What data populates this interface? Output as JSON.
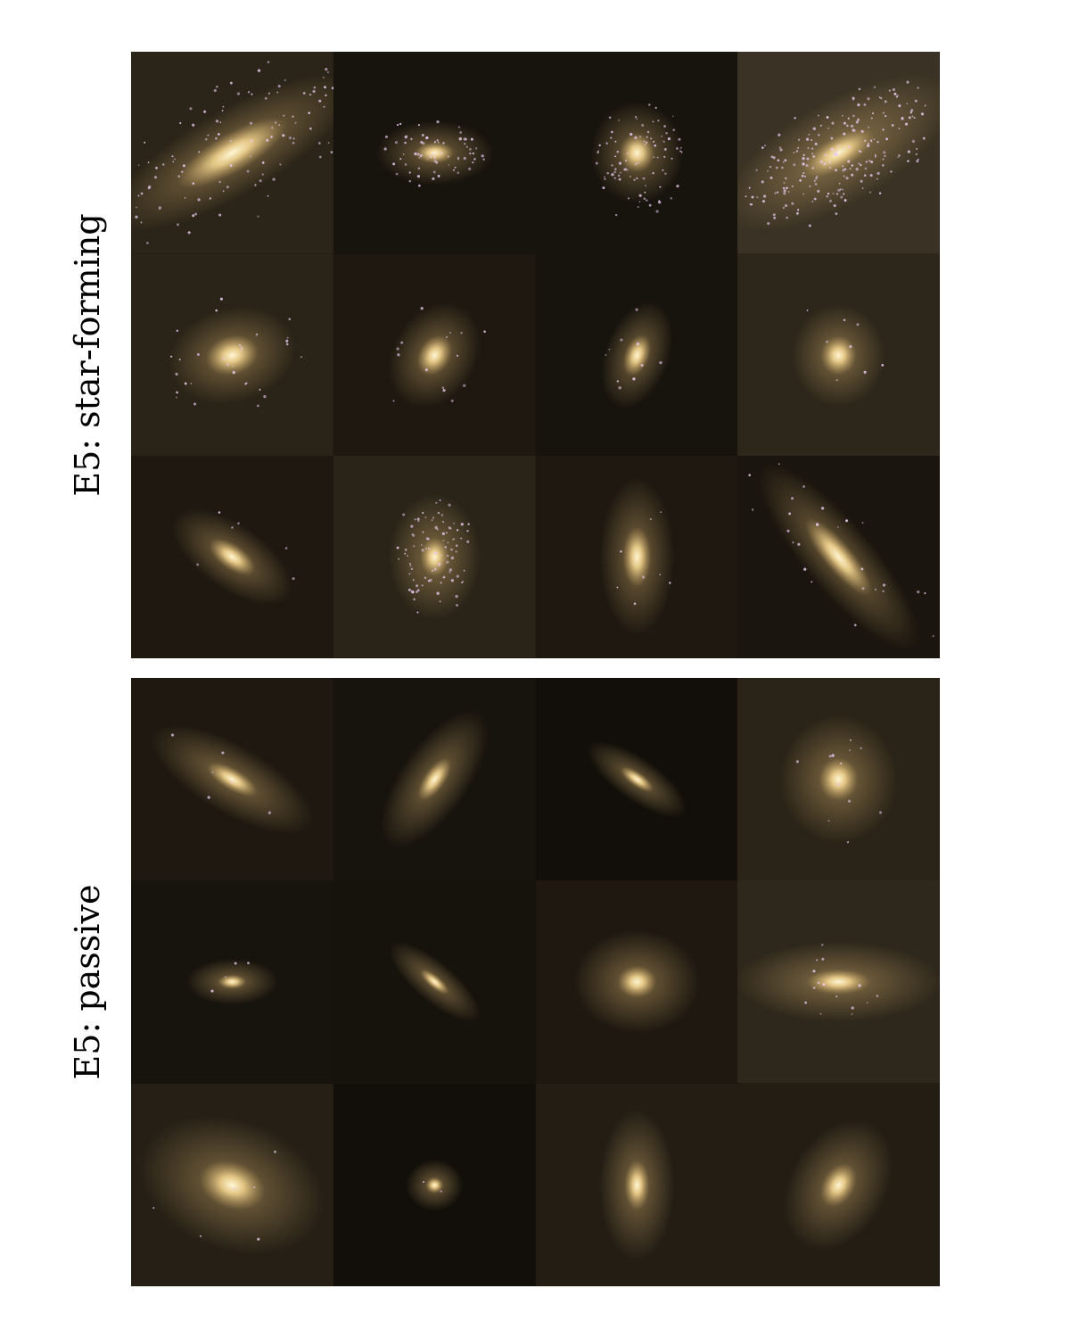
{
  "panels": {
    "star_forming": {
      "label": "E5:  star-forming"
    },
    "passive": {
      "label": "E5:  passive"
    }
  },
  "colors": {
    "background": "#15110c",
    "galaxy_core": "#fff2c8",
    "galaxy_halo": "#c9a86a",
    "star_clusters": "#e8c8f0"
  }
}
